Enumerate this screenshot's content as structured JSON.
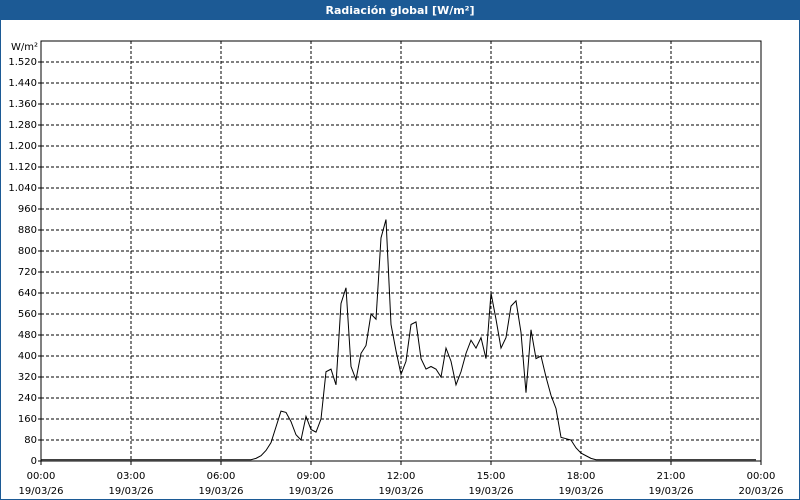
{
  "chart_data": {
    "type": "line",
    "title": "Radiación global [W/m²]",
    "y_label": "W/m²",
    "x": [
      0,
      420,
      430,
      440,
      450,
      460,
      470,
      480,
      490,
      500,
      510,
      520,
      530,
      540,
      550,
      560,
      570,
      580,
      590,
      600,
      610,
      620,
      630,
      640,
      650,
      660,
      670,
      680,
      690,
      700,
      710,
      720,
      730,
      740,
      750,
      760,
      770,
      780,
      790,
      800,
      810,
      820,
      830,
      840,
      850,
      860,
      870,
      880,
      890,
      900,
      910,
      920,
      930,
      940,
      950,
      960,
      970,
      980,
      990,
      1000,
      1010,
      1020,
      1030,
      1040,
      1050,
      1060,
      1070,
      1080,
      1090,
      1100,
      1110,
      1120,
      1130,
      1140,
      1150,
      1160,
      1430
    ],
    "series": [
      {
        "name": "Radiación global",
        "color": "#000000",
        "values": [
          5,
          5,
          10,
          20,
          40,
          70,
          130,
          190,
          185,
          150,
          100,
          80,
          170,
          120,
          110,
          160,
          340,
          350,
          290,
          600,
          660,
          360,
          310,
          410,
          440,
          560,
          540,
          850,
          920,
          520,
          420,
          330,
          380,
          520,
          530,
          390,
          350,
          360,
          350,
          320,
          430,
          380,
          290,
          340,
          410,
          460,
          430,
          470,
          390,
          640,
          540,
          430,
          470,
          590,
          610,
          490,
          260,
          500,
          390,
          400,
          320,
          250,
          200,
          90,
          85,
          80,
          50,
          30,
          20,
          10,
          5,
          5,
          5,
          5,
          5,
          5,
          5
        ]
      }
    ],
    "xlim": [
      0,
      1440
    ],
    "xticks": [
      {
        "value": 0,
        "label": "00:00"
      },
      {
        "value": 180,
        "label": "03:00"
      },
      {
        "value": 360,
        "label": "06:00"
      },
      {
        "value": 540,
        "label": "09:00"
      },
      {
        "value": 720,
        "label": "12:00"
      },
      {
        "value": 900,
        "label": "15:00"
      },
      {
        "value": 1080,
        "label": "18:00"
      },
      {
        "value": 1260,
        "label": "21:00"
      },
      {
        "value": 1440,
        "label": "00:00"
      }
    ],
    "xtick_dates": [
      "19/03/26",
      "19/03/26",
      "19/03/26",
      "19/03/26",
      "19/03/26",
      "19/03/26",
      "19/03/26",
      "19/03/26",
      "20/03/26"
    ],
    "ylim": [
      0,
      1600
    ],
    "yticks": [
      0,
      80,
      160,
      240,
      320,
      400,
      480,
      560,
      640,
      720,
      800,
      880,
      960,
      {
        "value": 1040,
        "label": "1.040"
      },
      {
        "value": 1120,
        "label": "1.120"
      },
      {
        "value": 1200,
        "label": "1.200"
      },
      {
        "value": 1280,
        "label": "1.280"
      },
      {
        "value": 1360,
        "label": "1.360"
      },
      {
        "value": 1440,
        "label": "1.440"
      },
      {
        "value": 1520,
        "label": "1.520"
      }
    ],
    "grid": true
  }
}
